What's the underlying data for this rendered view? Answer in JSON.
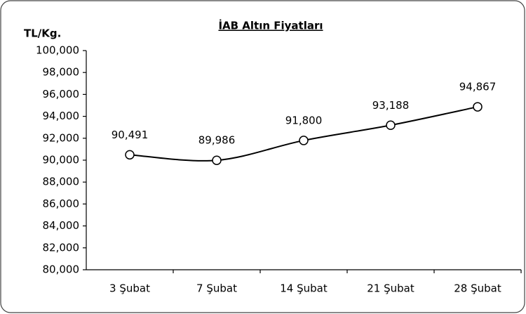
{
  "chart_data": {
    "type": "line",
    "title": "İAB Altın Fiyatları",
    "y_label": "TL/Kg.",
    "categories": [
      "3 Şubat",
      "7 Şubat",
      "14 Şubat",
      "21 Şubat",
      "28 Şubat"
    ],
    "series": [
      {
        "name": "İAB Altın Fiyatları",
        "color": "#000000",
        "values": [
          90491,
          89986,
          91800,
          93188,
          94867
        ],
        "value_labels": [
          "90,491",
          "89,986",
          "91,800",
          "93,188",
          "94,867"
        ]
      }
    ],
    "ylim": [
      80000,
      100000
    ],
    "yticks": [
      {
        "value": 80000,
        "label": "80,000"
      },
      {
        "value": 82000,
        "label": "82,000"
      },
      {
        "value": 84000,
        "label": "84,000"
      },
      {
        "value": 86000,
        "label": "86,000"
      },
      {
        "value": 88000,
        "label": "88,000"
      },
      {
        "value": 90000,
        "label": "90,000"
      },
      {
        "value": 92000,
        "label": "92,000"
      },
      {
        "value": 94000,
        "label": "94,000"
      },
      {
        "value": 96000,
        "label": "96,000"
      },
      {
        "value": 98000,
        "label": "98,000"
      },
      {
        "value": 100000,
        "label": "100,000"
      }
    ],
    "grid": false
  }
}
